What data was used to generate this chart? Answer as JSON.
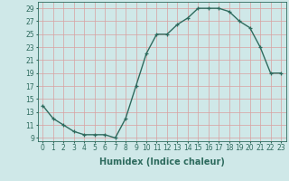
{
  "x": [
    0,
    1,
    2,
    3,
    4,
    5,
    6,
    7,
    8,
    9,
    10,
    11,
    12,
    13,
    14,
    15,
    16,
    17,
    18,
    19,
    20,
    21,
    22,
    23
  ],
  "y": [
    14,
    12,
    11,
    10,
    9.5,
    9.5,
    9.5,
    9,
    12,
    17,
    22,
    25,
    25,
    26.5,
    27.5,
    29,
    29,
    29,
    28.5,
    27,
    26,
    23,
    19,
    19
  ],
  "line_color": "#2e6b5e",
  "marker": "+",
  "marker_size": 3.5,
  "bg_color": "#cfe8e8",
  "grid_color": "#b0d0d0",
  "xlabel": "Humidex (Indice chaleur)",
  "xlim": [
    -0.5,
    23.5
  ],
  "ylim": [
    8.5,
    30
  ],
  "yticks": [
    9,
    11,
    13,
    15,
    17,
    19,
    21,
    23,
    25,
    27,
    29
  ],
  "xticks": [
    0,
    1,
    2,
    3,
    4,
    5,
    6,
    7,
    8,
    9,
    10,
    11,
    12,
    13,
    14,
    15,
    16,
    17,
    18,
    19,
    20,
    21,
    22,
    23
  ],
  "tick_color": "#2e6b5e",
  "label_color": "#2e6b5e",
  "xlabel_fontsize": 7,
  "tick_fontsize": 5.5,
  "linewidth": 1.0,
  "markeredgewidth": 0.9
}
